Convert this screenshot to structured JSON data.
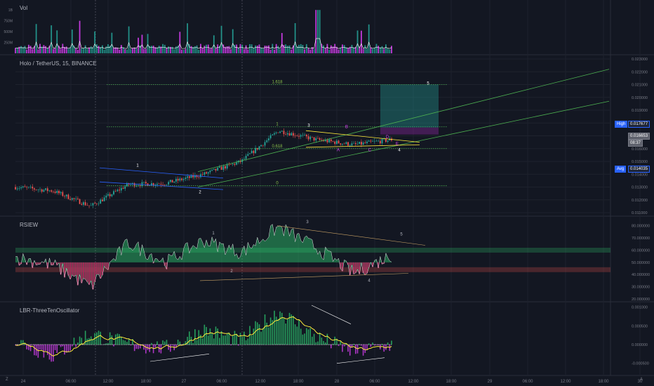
{
  "panes": {
    "vol": {
      "title": "Vol",
      "ticks": [
        "1B",
        "750M",
        "500M",
        "250M"
      ]
    },
    "price": {
      "title": "Holo / TetherUS, 15, BINANCE",
      "ticks": [
        "0.023000",
        "0.022000",
        "0.021000",
        "0.020000",
        "0.019000",
        "0.018000",
        "0.017000",
        "0.016000",
        "0.015000",
        "0.014000",
        "0.013000",
        "0.012000",
        "0.011000"
      ],
      "high_label": "High",
      "high_value": "0.017677",
      "last_value": "0.016653",
      "countdown": "08:37",
      "avg_label": "Avg",
      "avg_value": "0.014035"
    },
    "rsi": {
      "title": "RSIEW",
      "ticks": [
        "80.000000",
        "70.000000",
        "60.000000",
        "50.000000",
        "40.000000",
        "30.000000",
        "20.000000"
      ]
    },
    "osc": {
      "title": "LBR-ThreeTenOscillator",
      "ticks": [
        "0.001000",
        "0.000500",
        "0.000000",
        "-0.000500"
      ]
    }
  },
  "fib_labels": [
    "1.618",
    "1",
    "0.618",
    "0"
  ],
  "wave_labels": {
    "price": [
      "1",
      "2",
      "3",
      "4",
      "5",
      "A",
      "B",
      "C",
      "D",
      "E"
    ],
    "rsi": [
      "1",
      "2",
      "3",
      "4",
      "5"
    ]
  },
  "time_axis": [
    "24",
    "06:00",
    "12:00",
    "18:00",
    "27",
    "06:00",
    "12:00",
    "18:00",
    "28",
    "06:00",
    "12:00",
    "18:00",
    "29",
    "06:00",
    "12:00",
    "18:00",
    "30"
  ],
  "corner": {
    "left": "Z",
    "right": "A"
  },
  "colors": {
    "bull": "#26a69a",
    "bear": "#ef5350",
    "fib": "#4caf50",
    "trend": "#4caf50",
    "channel": "#2962ff",
    "triangle": "#ffeb3b",
    "rsi_bull": "#2ecc71",
    "rsi_bear": "#c2185b",
    "osc_line": "#ffeb3b"
  },
  "chart_data": [
    {
      "type": "line",
      "name": "price",
      "title": "Holo / TetherUS, 15, BINANCE",
      "x": [
        "24 00:00",
        "24 06:00",
        "24 12:00",
        "24 18:00",
        "27 00:00",
        "27 06:00",
        "27 12:00",
        "27 18:00",
        "28 00:00",
        "28 06:00",
        "28 09:00"
      ],
      "values": [
        0.013,
        0.0127,
        0.0115,
        0.0132,
        0.0133,
        0.014,
        0.015,
        0.0174,
        0.0167,
        0.0163,
        0.0167
      ],
      "ylim": [
        0.011,
        0.023
      ],
      "fib_levels": {
        "0": 0.0131,
        "0.618": 0.016,
        "1": 0.0177,
        "1.618": 0.021
      },
      "high": 0.017677,
      "last": 0.016653,
      "avg": 0.014035
    },
    {
      "type": "area",
      "name": "RSIEW",
      "title": "RSIEW",
      "x": [
        "24 00:00",
        "24 06:00",
        "24 12:00",
        "24 18:00",
        "27 00:00",
        "27 06:00",
        "27 12:00",
        "27 18:00",
        "28 00:00",
        "28 06:00",
        "28 09:00"
      ],
      "values": [
        54,
        48,
        30,
        66,
        50,
        68,
        58,
        79,
        62,
        41,
        56
      ],
      "ylim": [
        20,
        85
      ],
      "bands": [
        40,
        60
      ]
    },
    {
      "type": "area",
      "name": "LBR-ThreeTenOscillator",
      "title": "LBR-ThreeTenOscillator",
      "x": [
        "24 00:00",
        "24 06:00",
        "24 12:00",
        "24 18:00",
        "27 00:00",
        "27 06:00",
        "27 12:00",
        "27 18:00",
        "28 00:00",
        "28 06:00",
        "28 09:00"
      ],
      "values": [
        0.0001,
        -0.0003,
        0.0003,
        0.0,
        -0.0001,
        0.0004,
        0.0001,
        0.0009,
        0.0002,
        -0.0002,
        0.0
      ],
      "ylim": [
        -0.00075,
        0.00105
      ]
    }
  ]
}
